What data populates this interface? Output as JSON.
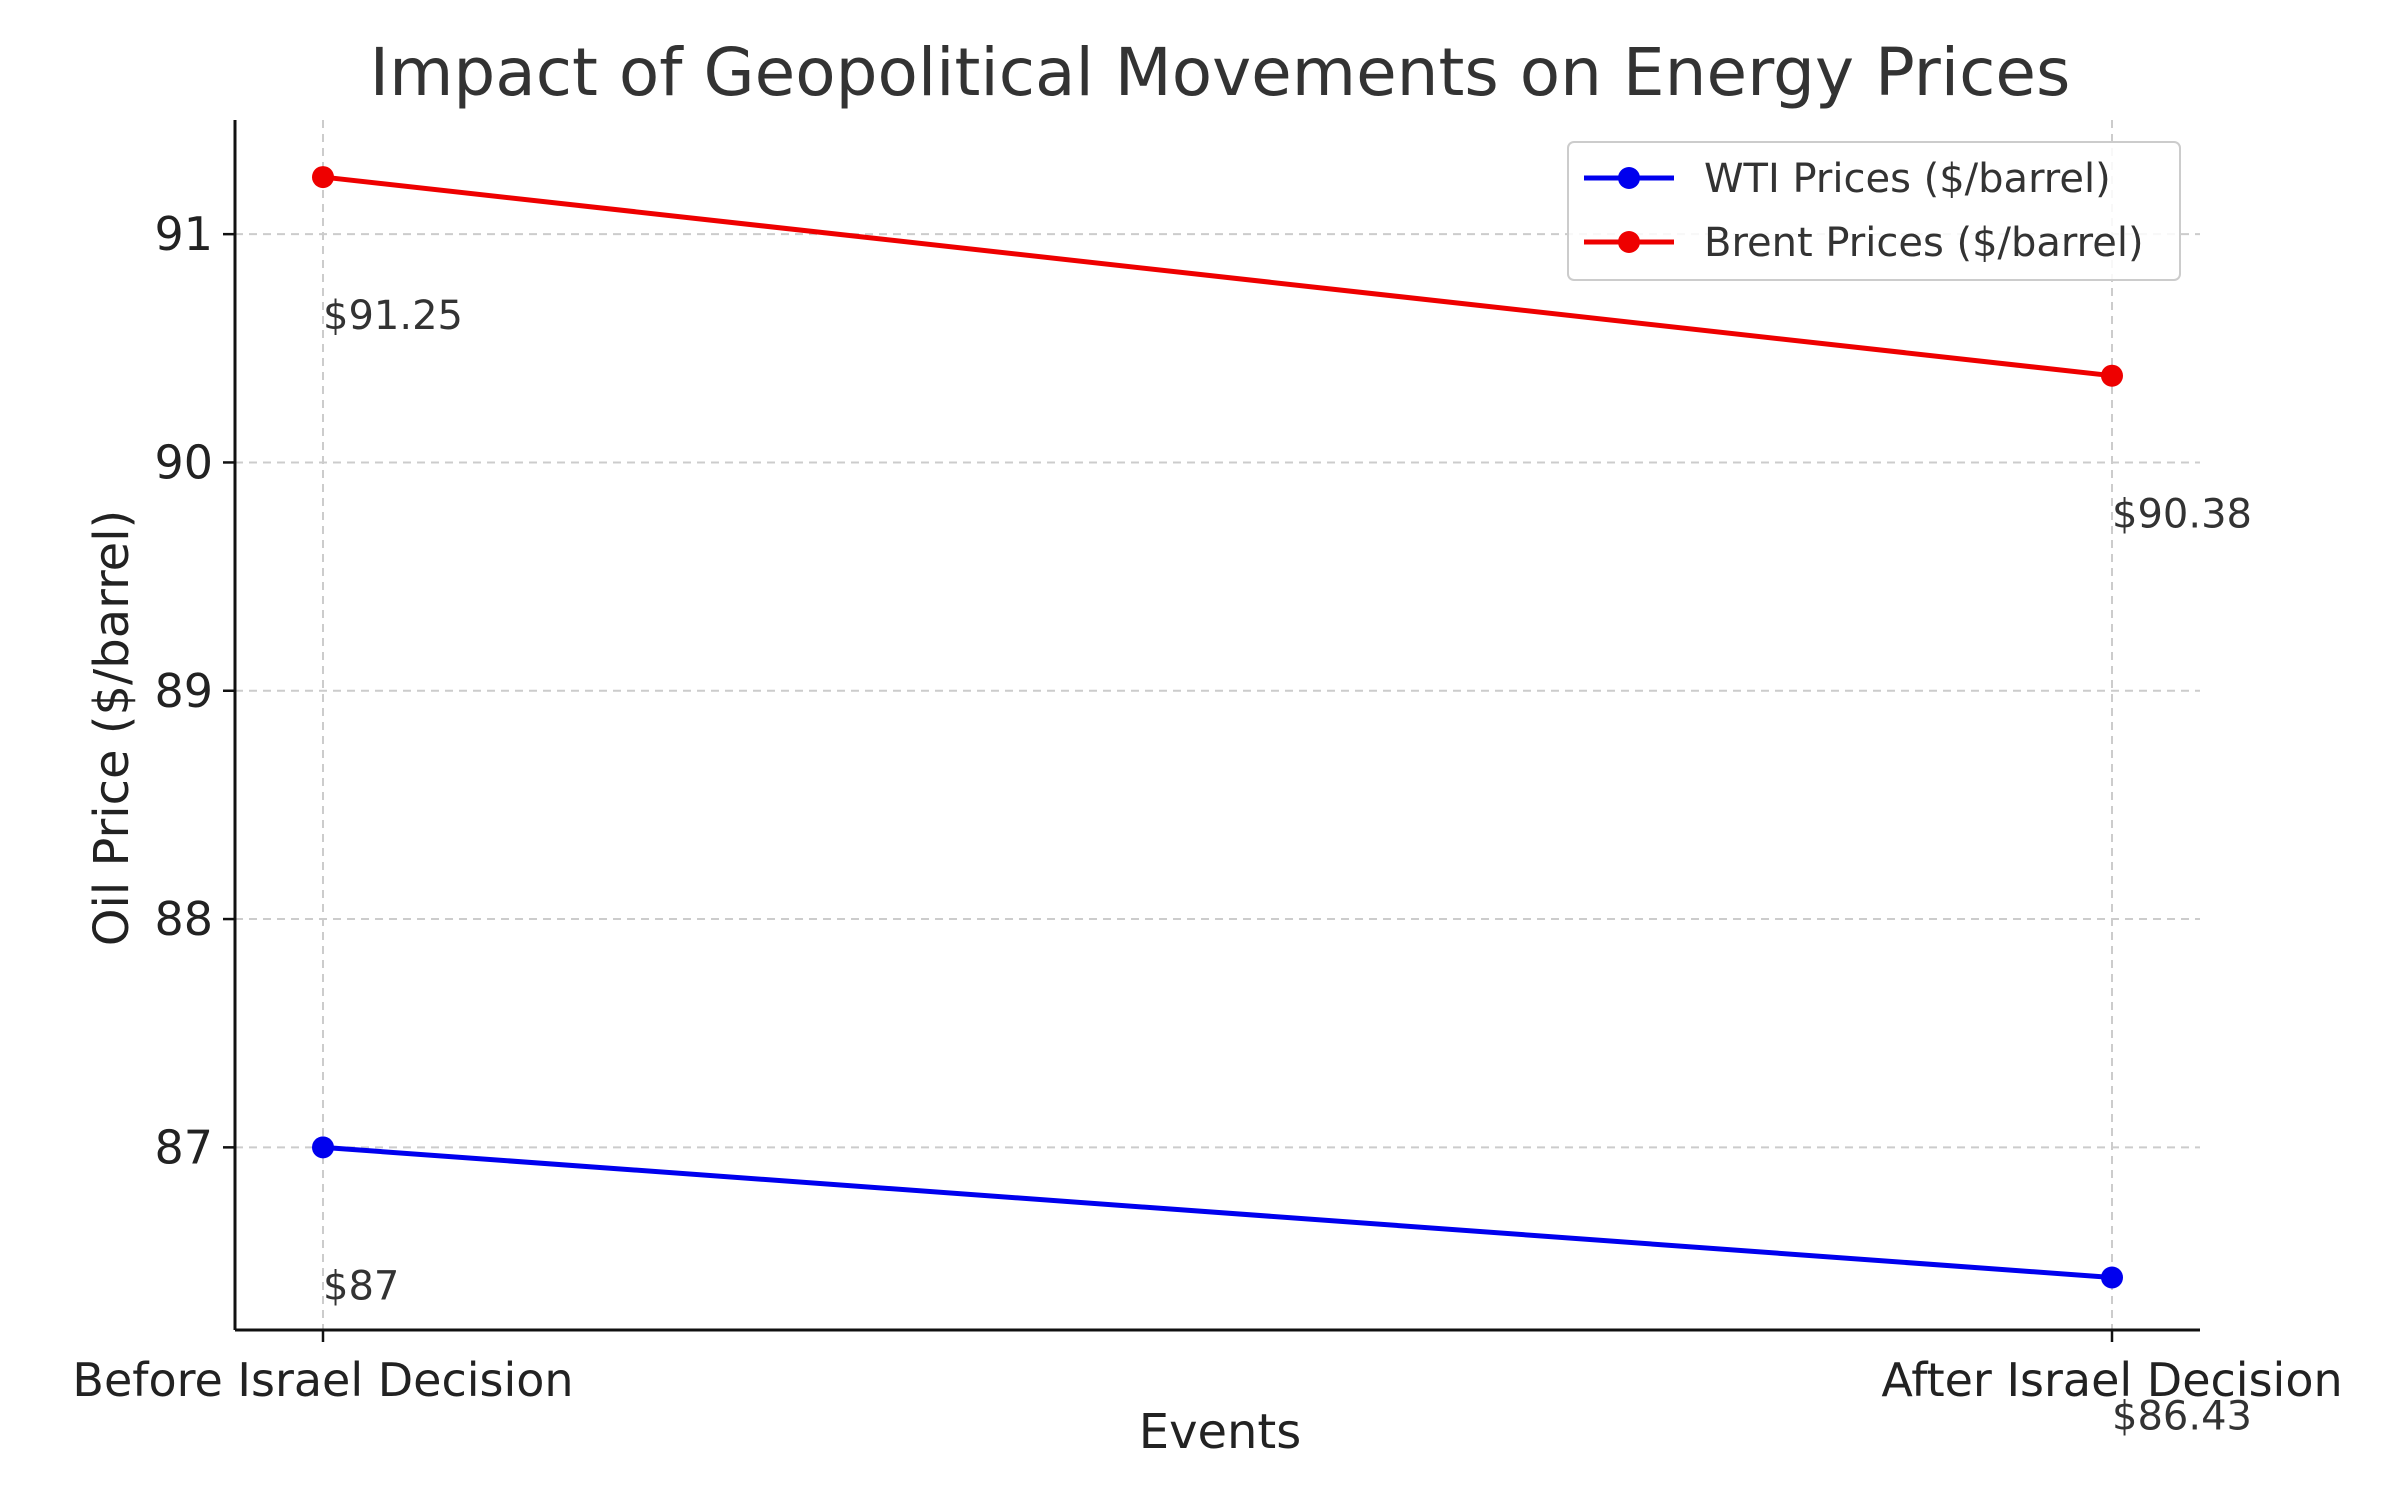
{
  "chart_data": {
    "type": "line",
    "title": "Impact of Geopolitical Movements on Energy Prices",
    "xlabel": "Events",
    "ylabel": "Oil Price ($/barrel)",
    "categories": [
      "Before Israel Decision",
      "After Israel Decision"
    ],
    "ylim": [
      86.2,
      91.5
    ],
    "yticks": [
      87,
      88,
      89,
      90,
      91
    ],
    "grid": true,
    "legend_position": "top-right",
    "series": [
      {
        "name": "WTI Prices ($/barrel)",
        "color": "#0000ee",
        "values": [
          87,
          86.43
        ],
        "labels": [
          "$87",
          "$86.43"
        ]
      },
      {
        "name": "Brent Prices ($/barrel)",
        "color": "#ee0000",
        "values": [
          91.25,
          90.38
        ],
        "labels": [
          "$91.25",
          "$90.38"
        ]
      }
    ]
  }
}
